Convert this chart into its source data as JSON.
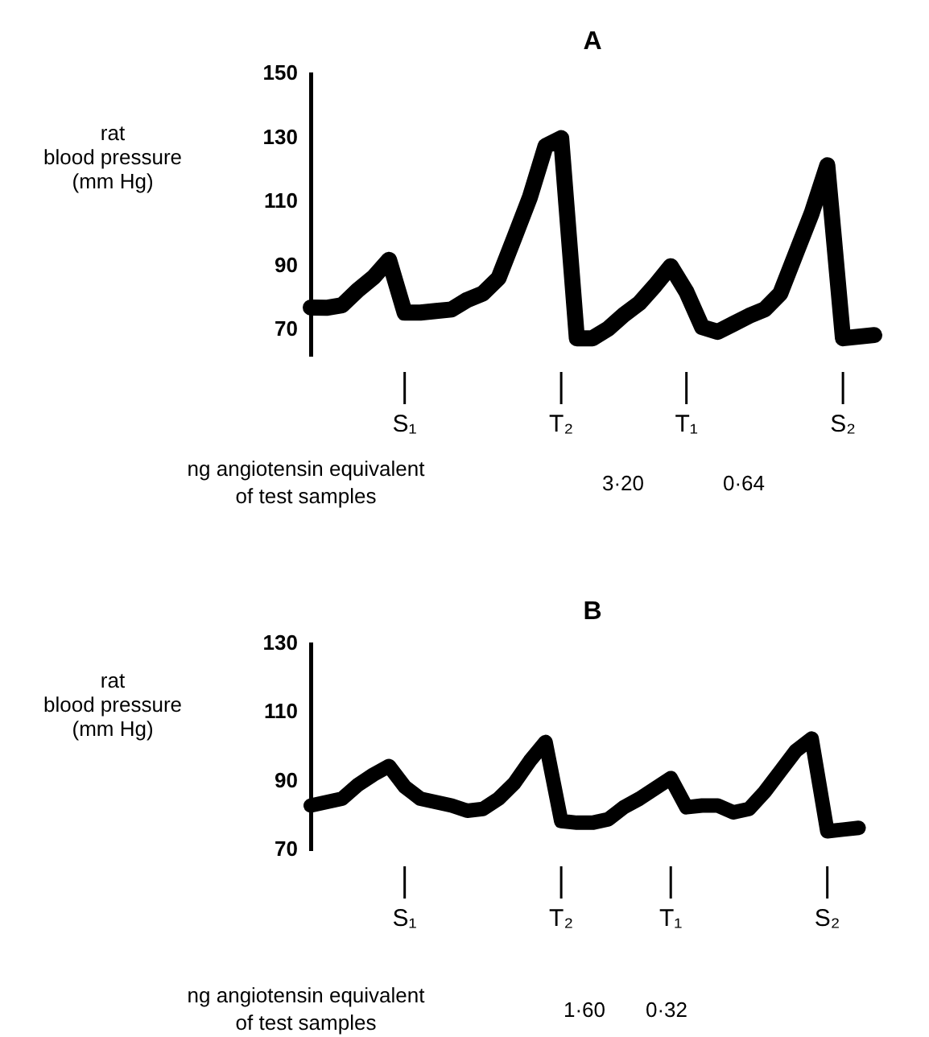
{
  "chart_data": [
    {
      "type": "line",
      "title": "A",
      "ylabel": "rat\nblood pressure\n(mm Hg)",
      "categories": [
        null,
        null,
        null,
        null,
        null,
        null,
        "S₁",
        null,
        null,
        null,
        null,
        null,
        null,
        null,
        null,
        null,
        "T₂",
        null,
        null,
        null,
        null,
        null,
        null,
        null,
        "T₁",
        null,
        null,
        null,
        null,
        null,
        null,
        null,
        null,
        null,
        "S₂",
        null,
        null
      ],
      "series": [
        {
          "color": "#000000",
          "values": [
            77.1,
            77,
            77.8,
            82.5,
            86.5,
            92,
            75.5,
            75.5,
            76,
            76.5,
            79.5,
            81.5,
            86.3,
            98.8,
            111.5,
            127.5,
            130,
            67.5,
            67.5,
            70.5,
            74.8,
            78.5,
            84,
            90,
            82,
            71,
            69.5,
            72,
            74.5,
            76.5,
            81.5,
            94,
            106.5,
            121.5,
            67.5,
            68,
            68.5
          ]
        }
      ],
      "ylim": [
        62,
        150
      ],
      "yticks": [
        70,
        90,
        110,
        130,
        150
      ],
      "annotations": [
        "ng angiotensin equivalent\nof test samples",
        "3·20",
        "0·64"
      ]
    },
    {
      "type": "line",
      "title": "B",
      "ylabel": "rat\nblood pressure\n(mm Hg)",
      "categories": [
        null,
        null,
        null,
        null,
        null,
        null,
        "S₁",
        null,
        null,
        null,
        null,
        null,
        null,
        null,
        null,
        null,
        "T₂",
        null,
        null,
        null,
        null,
        null,
        null,
        "T₁",
        null,
        null,
        null,
        null,
        null,
        null,
        null,
        null,
        null,
        "S₂",
        null,
        null,
        null
      ],
      "series": [
        {
          "color": "#000000",
          "values": [
            83,
            84,
            85,
            89,
            92,
            94.5,
            88.5,
            85,
            84,
            83,
            81.5,
            82,
            85,
            89.5,
            96,
            101.5,
            78.5,
            78,
            78,
            79,
            82.5,
            85,
            88,
            91,
            82.5,
            83,
            83,
            81,
            82,
            87,
            93,
            99,
            102.5,
            75.5,
            76,
            76.5,
            null
          ]
        }
      ],
      "ylim": [
        70,
        130
      ],
      "yticks": [
        70,
        90,
        110,
        130
      ],
      "annotations": [
        "ng angiotensin equivalent\nof test samples",
        "1·60",
        "0·32"
      ]
    }
  ]
}
